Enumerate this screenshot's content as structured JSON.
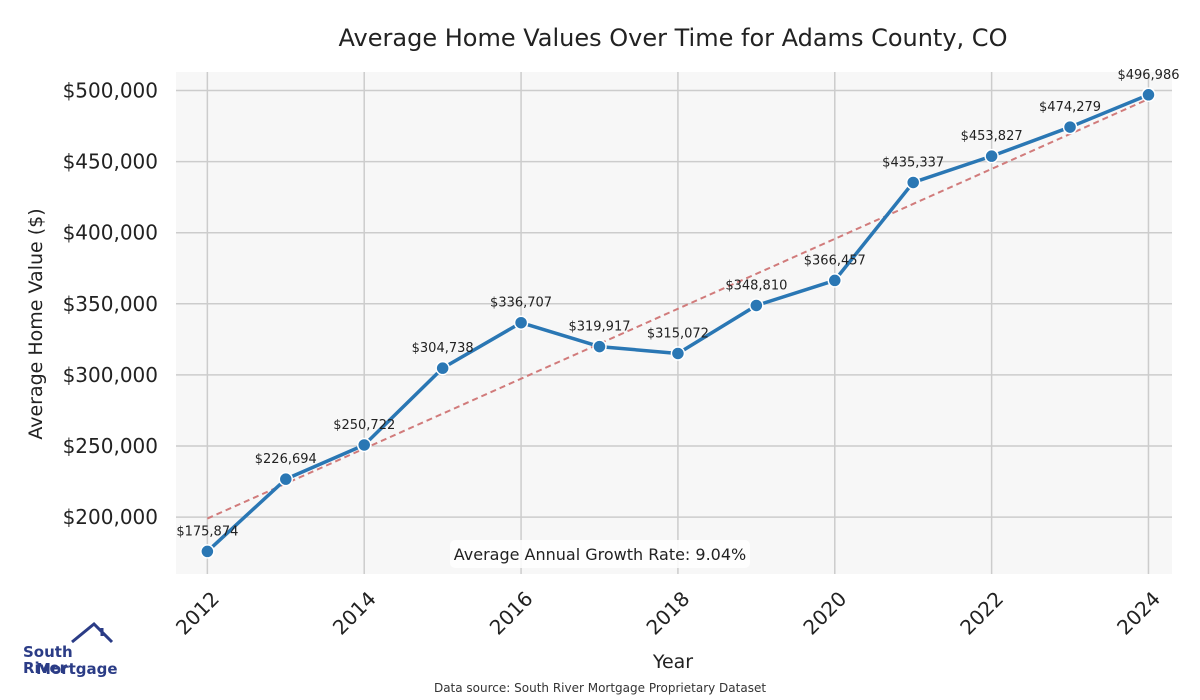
{
  "chart_data": {
    "type": "line",
    "title": "Average Home Values Over Time for Adams County, CO",
    "xlabel": "Year",
    "ylabel": "Average Home Value ($)",
    "x": [
      2012,
      2013,
      2014,
      2015,
      2016,
      2017,
      2018,
      2019,
      2020,
      2021,
      2022,
      2023,
      2024
    ],
    "values": [
      175874,
      226694,
      250722,
      304738,
      336707,
      319917,
      315072,
      348810,
      366457,
      435337,
      453827,
      474279,
      496986
    ],
    "data_labels": [
      "$175,874",
      "$226,694",
      "$250,722",
      "$304,738",
      "$336,707",
      "$319,917",
      "$315,072",
      "$348,810",
      "$366,457",
      "$435,337",
      "$453,827",
      "$474,279",
      "$496,986"
    ],
    "xticks": [
      2012,
      2014,
      2016,
      2018,
      2020,
      2022,
      2024
    ],
    "yticks": [
      200000,
      250000,
      300000,
      350000,
      400000,
      450000,
      500000
    ],
    "ytick_labels": [
      "$200,000",
      "$250,000",
      "$300,000",
      "$350,000",
      "$400,000",
      "$450,000",
      "$500,000"
    ],
    "xlim": [
      2011.6,
      2024.3
    ],
    "ylim": [
      160000,
      513000
    ],
    "trendline": {
      "style": "dashed",
      "start": 199000,
      "end": 494000
    },
    "annotation": "Average Annual Growth Rate: 9.04%",
    "grid": true,
    "colors": {
      "line": "#2a77b4",
      "trend": "#d17b7b",
      "plot_bg": "#f7f7f7",
      "grid": "#cccccc"
    }
  },
  "brand": {
    "logo_line1": "South River",
    "logo_line2": "Mortgage",
    "logo_color": "#2b3c86"
  },
  "source_text": "Data source: South River Mortgage Proprietary Dataset"
}
